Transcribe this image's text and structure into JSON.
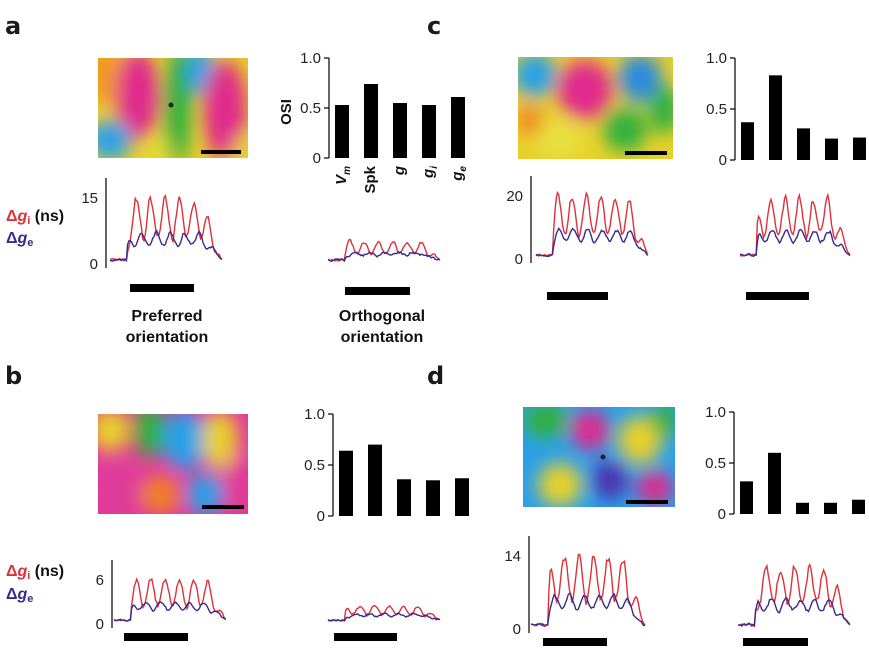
{
  "panels": [
    {
      "letter": "a",
      "chart_data": {
        "type": "bar",
        "ylabel": "OSI",
        "yticks": [
          "0",
          "0.5",
          "1.0"
        ],
        "ylim": [
          0,
          1
        ],
        "categories": [
          "Vm",
          "Spk",
          "g",
          "gi",
          "ge"
        ],
        "values": [
          0.53,
          0.74,
          0.55,
          0.53,
          0.61
        ],
        "show_category_labels": true
      },
      "trace_axis": {
        "top_label": "15",
        "zero_label": "0"
      },
      "inh_seed": 3,
      "exc_seed": 7,
      "amp_pref": 1.0,
      "amp_orth": 0.3
    },
    {
      "letter": "b",
      "chart_data": {
        "type": "bar",
        "ylabel": "",
        "yticks": [
          "0",
          "0.5",
          "1.0"
        ],
        "ylim": [
          0,
          1
        ],
        "categories": [
          "Vm",
          "Spk",
          "g",
          "gi",
          "ge"
        ],
        "values": [
          0.64,
          0.7,
          0.36,
          0.35,
          0.37
        ],
        "show_category_labels": false
      },
      "trace_axis": {
        "top_label": "6",
        "zero_label": "0"
      },
      "inh_seed": 11,
      "exc_seed": 13,
      "amp_pref": 1.0,
      "amp_orth": 0.35
    },
    {
      "letter": "c",
      "chart_data": {
        "type": "bar",
        "ylabel": "",
        "yticks": [
          "0",
          "0.5",
          "1.0"
        ],
        "ylim": [
          0,
          1
        ],
        "categories": [
          "Vm",
          "Spk",
          "g",
          "gi",
          "ge"
        ],
        "values": [
          0.37,
          0.83,
          0.31,
          0.21,
          0.22
        ],
        "show_category_labels": false
      },
      "trace_axis": {
        "top_label": "20",
        "zero_label": "0"
      },
      "inh_seed": 5,
      "exc_seed": 17,
      "amp_pref": 1.0,
      "amp_orth": 0.95
    },
    {
      "letter": "d",
      "chart_data": {
        "type": "bar",
        "ylabel": "",
        "yticks": [
          "0",
          "0.5",
          "1.0"
        ],
        "ylim": [
          0,
          1
        ],
        "categories": [
          "Vm",
          "Spk",
          "g",
          "gi",
          "ge"
        ],
        "values": [
          0.32,
          0.6,
          0.11,
          0.11,
          0.14
        ],
        "show_category_labels": false
      },
      "trace_axis": {
        "top_label": "14",
        "zero_label": "0"
      },
      "inh_seed": 19,
      "exc_seed": 23,
      "amp_pref": 1.0,
      "amp_orth": 0.85
    }
  ],
  "legend": {
    "delta": "Δ",
    "gi_symbol": "g",
    "gi_sub": "i",
    "gi_unit": " (ns)",
    "ge_symbol": "g",
    "ge_sub": "e",
    "gi_color": "#e0303a",
    "ge_color": "#3a2a8a"
  },
  "conditions": {
    "preferred": [
      "Preferred",
      "orientation"
    ],
    "orthogonal": [
      "Orthogonal",
      "orientation"
    ]
  },
  "colors": {
    "inhibitory": "#e0303a",
    "excitatory": "#3a2a8a",
    "bar": "#000000"
  }
}
